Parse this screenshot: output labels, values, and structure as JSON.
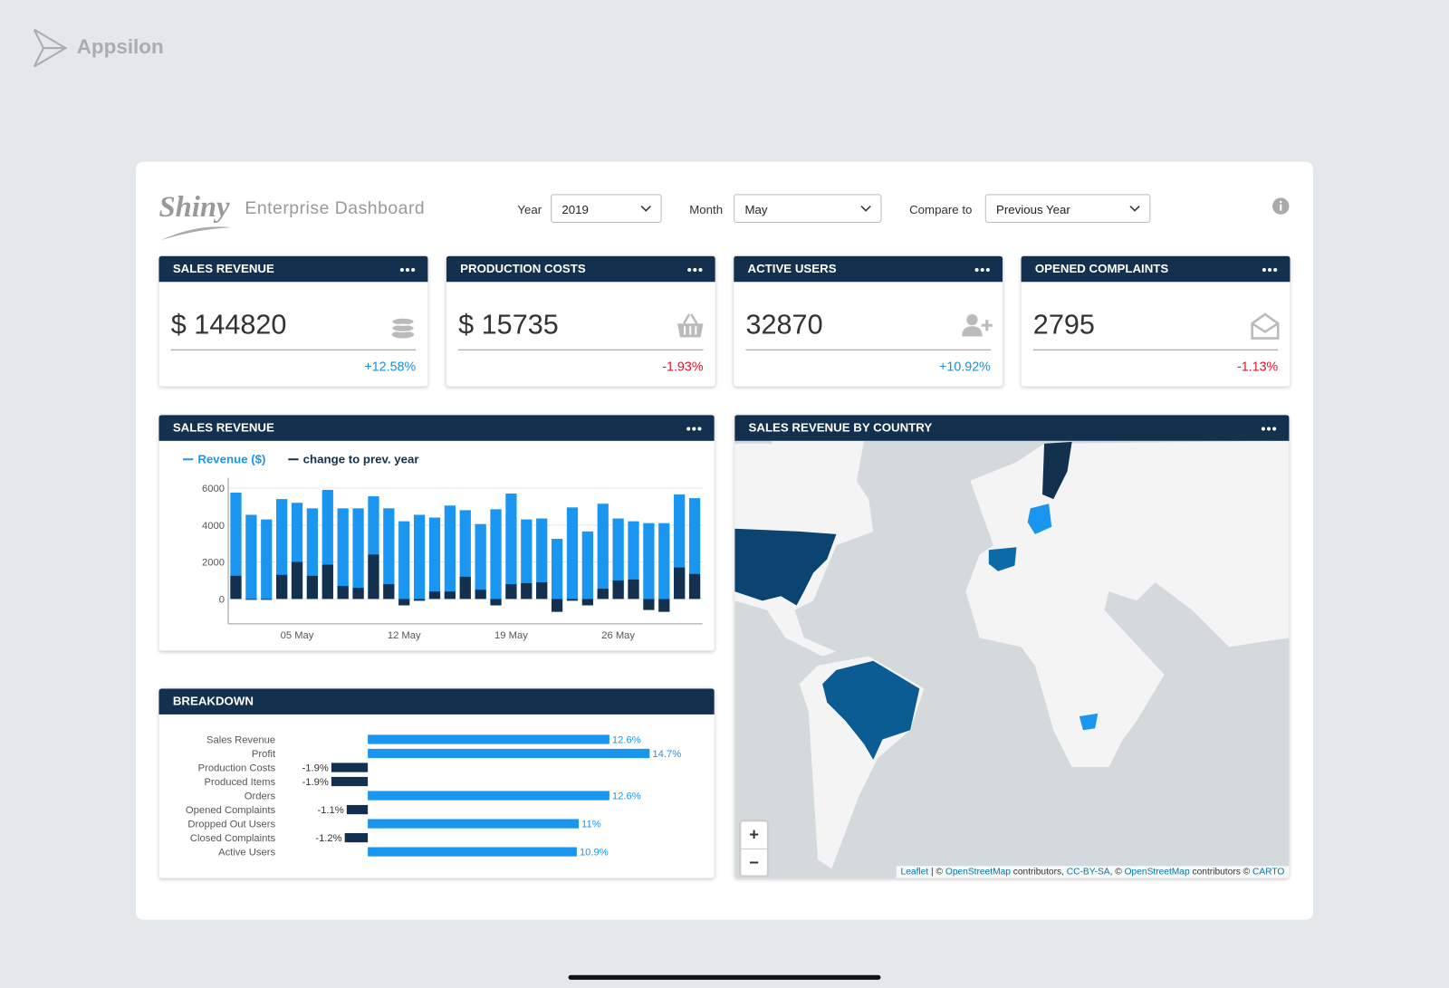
{
  "brand": "Appsilon",
  "header": {
    "logo": "Shiny",
    "title": "Enterprise Dashboard"
  },
  "filters": [
    {
      "label": "Year",
      "value": "2019"
    },
    {
      "label": "Month",
      "value": "May"
    },
    {
      "label": "Compare to",
      "value": "Previous Year"
    }
  ],
  "kpis": [
    {
      "title": "SALES REVENUE",
      "value": "$ 144820",
      "change": "+12.58%"
    },
    {
      "title": "PRODUCTION COSTS",
      "value": "$ 15735",
      "change": "-1.93%"
    },
    {
      "title": "ACTIVE USERS",
      "value": "32870",
      "change": "+10.92%"
    },
    {
      "title": "OPENED COMPLAINTS",
      "value": "2795",
      "change": "-1.13%"
    }
  ],
  "chart_data": [
    {
      "type": "bar",
      "title": "SALES REVENUE",
      "categories": [
        null,
        null,
        null,
        null,
        "05 May",
        null,
        null,
        null,
        null,
        null,
        null,
        "12 May",
        null,
        null,
        null,
        null,
        null,
        null,
        "19 May",
        null,
        null,
        null,
        null,
        null,
        null,
        "26 May",
        null,
        null,
        null,
        null,
        null
      ],
      "series": [
        {
          "name": "Revenue ($)",
          "color": "#1a96f0",
          "values": [
            5750,
            4550,
            4300,
            5400,
            5200,
            4900,
            5900,
            4900,
            4900,
            5550,
            4900,
            4200,
            4550,
            4400,
            5050,
            4800,
            4050,
            4850,
            5700,
            4300,
            4350,
            3250,
            4950,
            3650,
            5150,
            4350,
            4200,
            4100,
            4100,
            5650,
            5450
          ]
        },
        {
          "name": "change to prev. year",
          "color": "#13314f",
          "values": [
            1250,
            -50,
            -50,
            1300,
            2000,
            1250,
            1850,
            700,
            600,
            2400,
            800,
            -350,
            -100,
            400,
            400,
            1200,
            500,
            -350,
            800,
            850,
            900,
            -700,
            -100,
            -350,
            550,
            1000,
            1050,
            -600,
            -700,
            1700,
            1350
          ]
        }
      ],
      "ylim": [
        -1350,
        6250
      ],
      "yticks": [
        0,
        2000,
        4000,
        6000
      ],
      "grid": true
    },
    {
      "type": "barh",
      "title": "BREAKDOWN",
      "categories": [
        "Sales Revenue",
        "Profit",
        "Production Costs",
        "Produced Items",
        "Orders",
        "Opened Complaints",
        "Dropped Out Users",
        "Closed Complaints",
        "Active Users"
      ],
      "values": [
        12.6,
        14.7,
        -1.9,
        -1.9,
        12.6,
        -1.1,
        11,
        -1.2,
        10.9
      ],
      "value_labels": [
        "12.6%",
        "14.7%",
        "-1.9%",
        "-1.9%",
        "12.6%",
        "-1.1%",
        "11%",
        "-1.2%",
        "10.9%"
      ],
      "color": "#1a96f0",
      "negative_color": "#13314f"
    }
  ],
  "map": {
    "title": "SALES REVENUE BY COUNTRY",
    "zoom_in": "+",
    "zoom_out": "−",
    "attribution": [
      "Leaflet",
      " | © ",
      "OpenStreetMap",
      " contributors, ",
      "CC-BY-SA",
      ", © ",
      "OpenStreetMap",
      " contributors © ",
      "CARTO"
    ]
  }
}
